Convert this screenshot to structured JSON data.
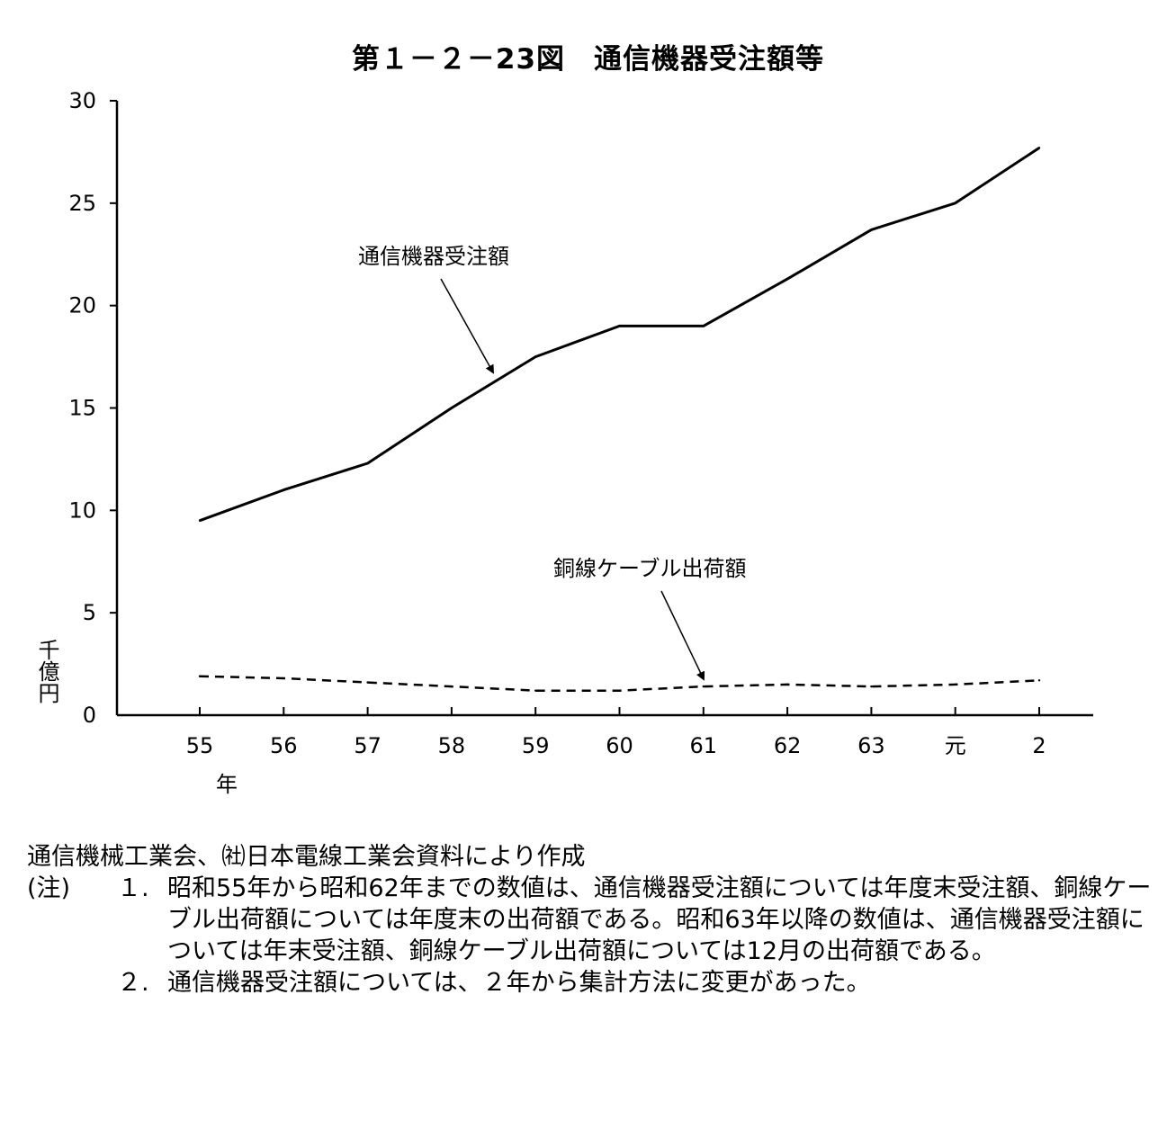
{
  "chart_data": {
    "type": "line",
    "title": "第１－２－23図　通信機器受注額等",
    "ylabel": "千億円",
    "xlabel_unit": "年",
    "ylim": [
      0,
      30
    ],
    "yticks": [
      "0",
      "5",
      "10",
      "15",
      "20",
      "25",
      "30"
    ],
    "categories": [
      "55",
      "56",
      "57",
      "58",
      "59",
      "60",
      "61",
      "62",
      "63",
      "元",
      "2"
    ],
    "series": [
      {
        "name": "通信機器受注額",
        "style": "solid",
        "values": [
          9.5,
          11.0,
          12.3,
          15.0,
          17.5,
          19.0,
          19.0,
          21.3,
          23.7,
          25.0,
          27.7
        ]
      },
      {
        "name": "銅線ケーブル出荷額",
        "style": "dashed",
        "values": [
          1.9,
          1.8,
          1.6,
          1.4,
          1.2,
          1.2,
          1.4,
          1.5,
          1.4,
          1.5,
          1.7
        ]
      }
    ],
    "grid": false,
    "legend": "annotations with arrows"
  },
  "notes": {
    "source": "通信機械工業会、㈳日本電線工業会資料により作成",
    "label": "(注)",
    "items": [
      {
        "num": "１.",
        "text": "昭和55年から昭和62年までの数値は、通信機器受注額については年度末受注額、銅線ケーブル出荷額については年度末の出荷額である。昭和63年以降の数値は、通信機器受注額については年末受注額、銅線ケーブル出荷額については12月の出荷額である。"
      },
      {
        "num": "２.",
        "text": "通信機器受注額については、２年から集計方法に変更があった。"
      }
    ]
  },
  "colors": {
    "line": "#000000",
    "background": "#ffffff"
  }
}
